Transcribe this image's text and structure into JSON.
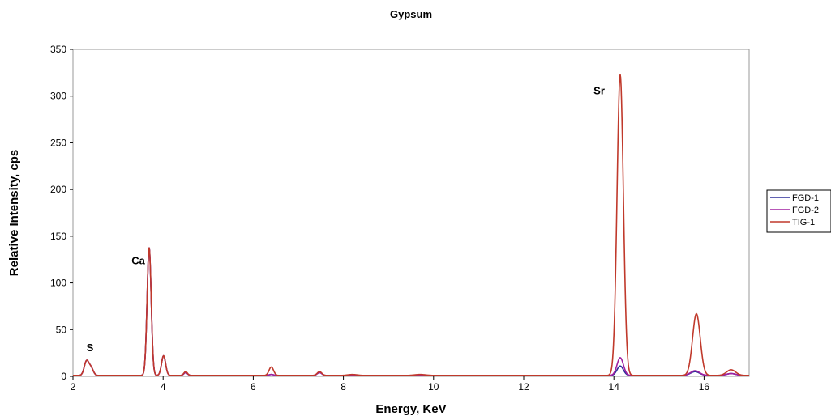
{
  "chart_data": {
    "type": "line",
    "title": "Gypsum",
    "xlabel": "Energy, KeV",
    "ylabel": "Relative Intensity, cps",
    "xlim": [
      2,
      17
    ],
    "ylim": [
      0,
      350
    ],
    "xticks": [
      2,
      4,
      6,
      8,
      10,
      12,
      14,
      16
    ],
    "yticks": [
      0,
      50,
      100,
      150,
      200,
      250,
      300,
      350
    ],
    "grid": false,
    "legend_position": "right",
    "baseline": 1,
    "annotations": [
      {
        "text": "S",
        "x": 2.3,
        "y": 27
      },
      {
        "text": "Ca",
        "x": 3.3,
        "y": 120
      },
      {
        "text": "Sr",
        "x": 13.55,
        "y": 302
      }
    ],
    "series": [
      {
        "name": "FGD-1",
        "color": "#2e2e9a",
        "peaks": [
          [
            2.3,
            15,
            0.05
          ],
          [
            2.4,
            8,
            0.05
          ],
          [
            3.69,
            137,
            0.045
          ],
          [
            4.01,
            21,
            0.045
          ],
          [
            4.5,
            3,
            0.04
          ],
          [
            6.4,
            1,
            0.05
          ],
          [
            7.47,
            3,
            0.05
          ],
          [
            14.14,
            10,
            0.07
          ],
          [
            15.8,
            4,
            0.1
          ],
          [
            16.6,
            2,
            0.1
          ]
        ]
      },
      {
        "name": "FGD-2",
        "color": "#a020a0",
        "peaks": [
          [
            2.3,
            15,
            0.05
          ],
          [
            2.4,
            8,
            0.05
          ],
          [
            3.69,
            137,
            0.045
          ],
          [
            4.01,
            21,
            0.045
          ],
          [
            4.5,
            3,
            0.04
          ],
          [
            6.4,
            1,
            0.05
          ],
          [
            7.47,
            3,
            0.05
          ],
          [
            14.14,
            19,
            0.07
          ],
          [
            15.8,
            5,
            0.1
          ],
          [
            16.6,
            2,
            0.1
          ]
        ]
      },
      {
        "name": "TIG-1",
        "color": "#c0392b",
        "peaks": [
          [
            2.3,
            15,
            0.05
          ],
          [
            2.4,
            8,
            0.05
          ],
          [
            3.69,
            137,
            0.045
          ],
          [
            4.01,
            21,
            0.045
          ],
          [
            4.5,
            4,
            0.04
          ],
          [
            6.4,
            9,
            0.05
          ],
          [
            7.47,
            4,
            0.05
          ],
          [
            8.2,
            1,
            0.1
          ],
          [
            9.7,
            1,
            0.12
          ],
          [
            14.14,
            322,
            0.07
          ],
          [
            15.83,
            66,
            0.085
          ],
          [
            16.6,
            6,
            0.1
          ]
        ]
      }
    ]
  }
}
